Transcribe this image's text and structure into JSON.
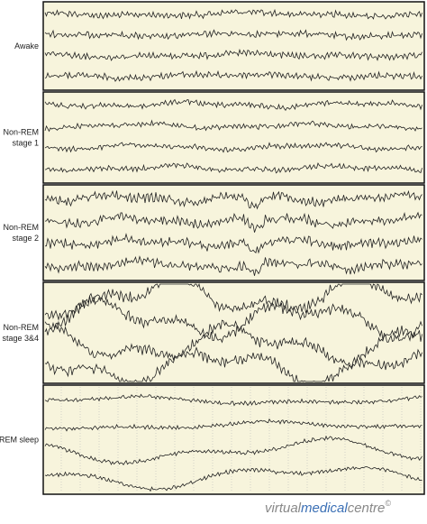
{
  "panels": [
    {
      "label": [
        "Awake"
      ]
    },
    {
      "label": [
        "Non-REM",
        "stage 1"
      ]
    },
    {
      "label": [
        "Non-REM",
        "stage 2"
      ]
    },
    {
      "label": [
        "Non-REM",
        "stage 3&4"
      ]
    },
    {
      "label": [
        "REM sleep"
      ]
    }
  ],
  "watermark": {
    "parts": [
      "virtual",
      "medical",
      "centre"
    ],
    "symbol": "©"
  }
}
